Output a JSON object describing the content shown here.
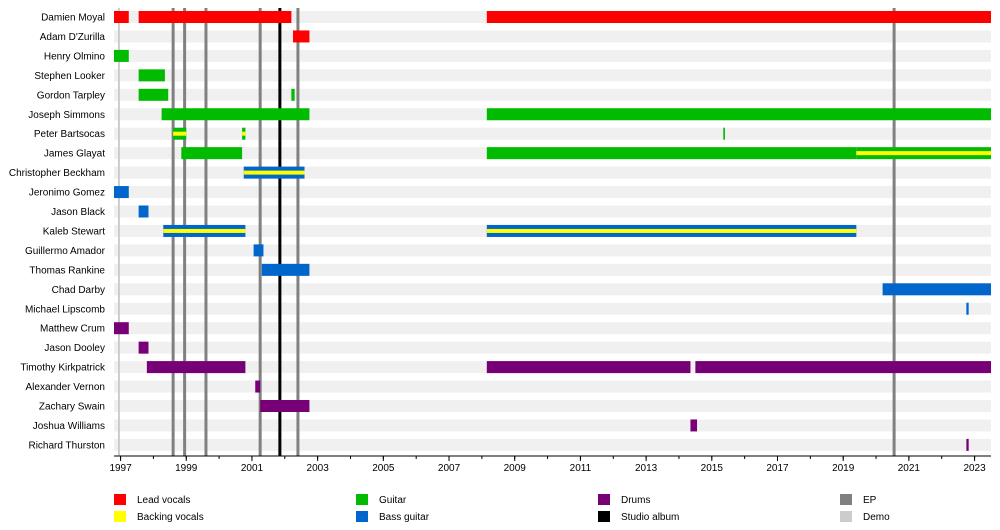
{
  "chart_data": {
    "type": "timeline",
    "title": "",
    "xlabel": "",
    "ylabel": "",
    "xlim": [
      1996.8,
      2023.5
    ],
    "x_ticks": [
      1997,
      1999,
      2001,
      2003,
      2005,
      2007,
      2009,
      2011,
      2013,
      2015,
      2017,
      2019,
      2021,
      2023
    ],
    "x_tick_labels": [
      "1997",
      "1999",
      "2001",
      "2003",
      "2005",
      "2007",
      "2009",
      "2011",
      "2013",
      "2015",
      "2017",
      "2019",
      "2021",
      "2023"
    ],
    "colors": {
      "lead_vocals": "#ff0000",
      "backing_vocals": "#ffff00",
      "guitar": "#00bb00",
      "bass_guitar": "#0066cc",
      "drums": "#770077",
      "studio_album": "#000000",
      "ep": "#808080",
      "demo": "#cccccc"
    },
    "legend": [
      {
        "key": "lead_vocals",
        "label": "Lead vocals"
      },
      {
        "key": "backing_vocals",
        "label": "Backing vocals"
      },
      {
        "key": "guitar",
        "label": "Guitar"
      },
      {
        "key": "bass_guitar",
        "label": "Bass guitar"
      },
      {
        "key": "drums",
        "label": "Drums"
      },
      {
        "key": "studio_album",
        "label": "Studio album"
      },
      {
        "key": "ep",
        "label": "EP"
      },
      {
        "key": "demo",
        "label": "Demo"
      }
    ],
    "events": [
      {
        "year": 1996.95,
        "type": "demo"
      },
      {
        "year": 1998.6,
        "type": "ep"
      },
      {
        "year": 1998.95,
        "type": "ep"
      },
      {
        "year": 1999.6,
        "type": "ep"
      },
      {
        "year": 2001.25,
        "type": "ep"
      },
      {
        "year": 2001.85,
        "type": "studio_album"
      },
      {
        "year": 2002.4,
        "type": "ep"
      },
      {
        "year": 2020.55,
        "type": "ep"
      }
    ],
    "members": [
      {
        "name": "Damien Moyal",
        "periods": [
          {
            "start": 1996.8,
            "end": 1997.25,
            "role": "lead_vocals"
          },
          {
            "start": 1997.55,
            "end": 2002.2,
            "role": "lead_vocals"
          },
          {
            "start": 2008.15,
            "end": 2023.5,
            "role": "lead_vocals"
          }
        ]
      },
      {
        "name": "Adam D'Zurilla",
        "periods": [
          {
            "start": 2002.25,
            "end": 2002.75,
            "role": "lead_vocals"
          }
        ]
      },
      {
        "name": "Henry Olmino",
        "periods": [
          {
            "start": 1996.8,
            "end": 1997.25,
            "role": "guitar"
          }
        ]
      },
      {
        "name": "Stephen Looker",
        "periods": [
          {
            "start": 1997.55,
            "end": 1998.35,
            "role": "guitar"
          }
        ]
      },
      {
        "name": "Gordon Tarpley",
        "periods": [
          {
            "start": 1997.55,
            "end": 1998.45,
            "role": "guitar"
          },
          {
            "start": 2002.2,
            "end": 2002.3,
            "role": "guitar"
          }
        ]
      },
      {
        "name": "Joseph Simmons",
        "periods": [
          {
            "start": 1998.25,
            "end": 2002.75,
            "role": "guitar"
          },
          {
            "start": 2008.15,
            "end": 2023.5,
            "role": "guitar"
          }
        ]
      },
      {
        "name": "Peter Bartsocas",
        "periods": [
          {
            "start": 1998.6,
            "end": 1999.0,
            "role": "guitar",
            "secondary": "backing_vocals"
          },
          {
            "start": 2000.7,
            "end": 2000.8,
            "role": "guitar",
            "secondary": "backing_vocals"
          },
          {
            "start": 2015.35,
            "end": 2015.4,
            "role": "guitar"
          }
        ]
      },
      {
        "name": "James Glayat",
        "periods": [
          {
            "start": 1998.85,
            "end": 2000.7,
            "role": "guitar"
          },
          {
            "start": 2008.15,
            "end": 2019.4,
            "role": "guitar"
          },
          {
            "start": 2019.4,
            "end": 2023.5,
            "role": "guitar",
            "secondary": "backing_vocals"
          }
        ]
      },
      {
        "name": "Christopher Beckham",
        "periods": [
          {
            "start": 2000.75,
            "end": 2002.6,
            "role": "bass_guitar",
            "secondary": "backing_vocals"
          }
        ]
      },
      {
        "name": "Jeronimo Gomez",
        "periods": [
          {
            "start": 1996.8,
            "end": 1997.25,
            "role": "bass_guitar"
          }
        ]
      },
      {
        "name": "Jason Black",
        "periods": [
          {
            "start": 1997.55,
            "end": 1997.85,
            "role": "bass_guitar"
          }
        ]
      },
      {
        "name": "Kaleb Stewart",
        "periods": [
          {
            "start": 1998.3,
            "end": 2000.8,
            "role": "bass_guitar",
            "secondary": "backing_vocals"
          },
          {
            "start": 2008.15,
            "end": 2019.4,
            "role": "bass_guitar",
            "secondary": "backing_vocals"
          }
        ]
      },
      {
        "name": "Guillermo Amador",
        "periods": [
          {
            "start": 2001.05,
            "end": 2001.35,
            "role": "bass_guitar"
          }
        ]
      },
      {
        "name": "Thomas Rankine",
        "periods": [
          {
            "start": 2001.3,
            "end": 2002.75,
            "role": "bass_guitar"
          }
        ]
      },
      {
        "name": "Chad Darby",
        "periods": [
          {
            "start": 2020.2,
            "end": 2023.5,
            "role": "bass_guitar"
          }
        ]
      },
      {
        "name": "Michael Lipscomb",
        "periods": [
          {
            "start": 2022.75,
            "end": 2022.82,
            "role": "bass_guitar"
          }
        ]
      },
      {
        "name": "Matthew Crum",
        "periods": [
          {
            "start": 1996.8,
            "end": 1997.25,
            "role": "drums"
          }
        ]
      },
      {
        "name": "Jason Dooley",
        "periods": [
          {
            "start": 1997.55,
            "end": 1997.85,
            "role": "drums"
          }
        ]
      },
      {
        "name": "Timothy Kirkpatrick",
        "periods": [
          {
            "start": 1997.8,
            "end": 2000.8,
            "role": "drums"
          },
          {
            "start": 2008.15,
            "end": 2014.35,
            "role": "drums"
          },
          {
            "start": 2014.5,
            "end": 2023.5,
            "role": "drums"
          }
        ]
      },
      {
        "name": "Alexander Vernon",
        "periods": [
          {
            "start": 2001.1,
            "end": 2001.25,
            "role": "drums"
          }
        ]
      },
      {
        "name": "Zachary Swain",
        "periods": [
          {
            "start": 2001.25,
            "end": 2002.75,
            "role": "drums"
          }
        ]
      },
      {
        "name": "Joshua Williams",
        "periods": [
          {
            "start": 2014.35,
            "end": 2014.55,
            "role": "drums"
          }
        ]
      },
      {
        "name": "Richard Thurston",
        "periods": [
          {
            "start": 2022.75,
            "end": 2022.82,
            "role": "drums"
          }
        ]
      }
    ]
  }
}
